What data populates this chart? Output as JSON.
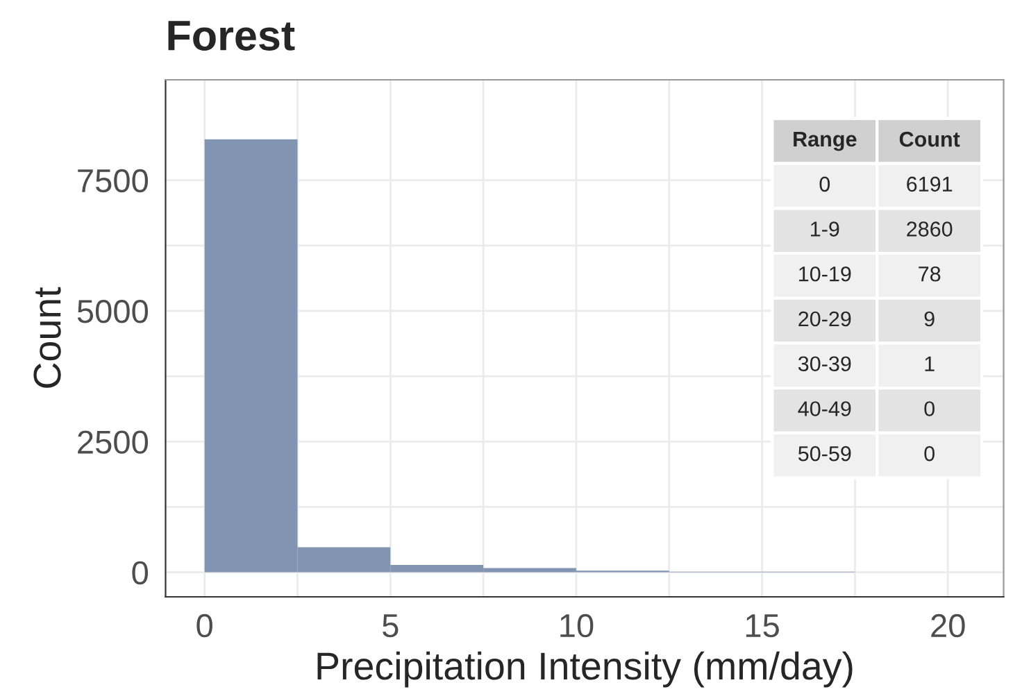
{
  "chart_data": {
    "type": "histogram",
    "title": "Forest",
    "xlabel": "Precipitation Intensity (mm/day)",
    "ylabel": "Count",
    "bins": [
      0,
      2.5,
      5,
      7.5,
      10,
      12.5,
      15,
      17.5
    ],
    "values": [
      8280,
      480,
      140,
      80,
      30,
      10,
      10
    ],
    "color": "#8195b3",
    "xlim": [
      -1.05,
      21.5
    ],
    "ylim": [
      -470,
      9420
    ],
    "xticks": [
      0,
      5,
      10,
      15,
      20
    ],
    "yticks": [
      0,
      2500,
      5000,
      7500
    ],
    "grid": true,
    "annotations": [
      "Range",
      "Count",
      "0",
      "6191",
      "1-9",
      "2860",
      "10-19",
      "78",
      "20-29",
      "9",
      "30-39",
      "1",
      "40-49",
      "0",
      "50-59",
      "0"
    ]
  }
}
